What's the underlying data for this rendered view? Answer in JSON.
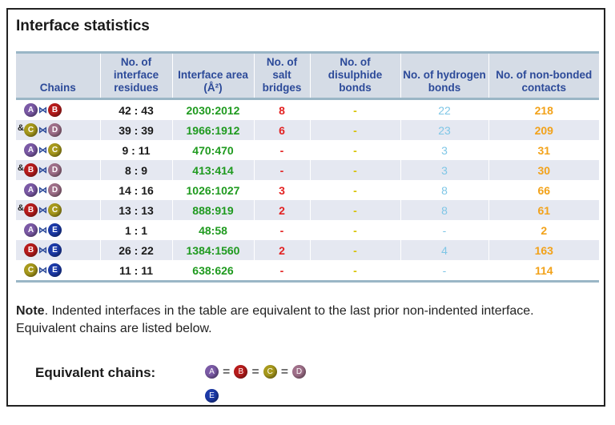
{
  "title": "Interface statistics",
  "colors": {
    "A": "#7b5aa6",
    "B": "#b81c1c",
    "C": "#a89a1c",
    "D": "#a0708a",
    "E": "#1c3aa8"
  },
  "headers": {
    "chains": "Chains",
    "residues": "No. of interface residues",
    "area": "Interface area (Å²)",
    "salt": "No. of salt bridges",
    "disulphide": "No. of disulphide bonds",
    "hbonds": "No. of hydrogen bonds",
    "nonbonded": "No. of non-bonded contacts"
  },
  "rows": [
    {
      "indent": "",
      "c1": "A",
      "c2": "B",
      "link": "⋈",
      "residues": "42 : 43",
      "area": "2030:2012",
      "salt": "8",
      "disulphide": "-",
      "hbonds": "22",
      "nonbonded": "218"
    },
    {
      "indent": "&",
      "c1": "C",
      "c2": "D",
      "link": "⋈",
      "residues": "39 : 39",
      "area": "1966:1912",
      "salt": "6",
      "disulphide": "-",
      "hbonds": "23",
      "nonbonded": "209"
    },
    {
      "indent": "",
      "c1": "A",
      "c2": "C",
      "link": "⋈",
      "residues": "9 : 11",
      "area": "470:470",
      "salt": "-",
      "disulphide": "-",
      "hbonds": "3",
      "nonbonded": "31"
    },
    {
      "indent": "&",
      "c1": "B",
      "c2": "D",
      "link": "⋈",
      "residues": "8 : 9",
      "area": "413:414",
      "salt": "-",
      "disulphide": "-",
      "hbonds": "3",
      "nonbonded": "30"
    },
    {
      "indent": "",
      "c1": "A",
      "c2": "D",
      "link": "⋈",
      "residues": "14 : 16",
      "area": "1026:1027",
      "salt": "3",
      "disulphide": "-",
      "hbonds": "8",
      "nonbonded": "66"
    },
    {
      "indent": "&",
      "c1": "B",
      "c2": "C",
      "link": "⋈",
      "residues": "13 : 13",
      "area": "888:919",
      "salt": "2",
      "disulphide": "-",
      "hbonds": "8",
      "nonbonded": "61"
    },
    {
      "indent": "",
      "c1": "A",
      "c2": "E",
      "link": "⋈",
      "residues": "1 : 1",
      "area": "48:58",
      "salt": "-",
      "disulphide": "-",
      "hbonds": "-",
      "nonbonded": "2"
    },
    {
      "indent": "",
      "c1": "B",
      "c2": "E",
      "link": "⋈",
      "residues": "26 : 22",
      "area": "1384:1560",
      "salt": "2",
      "disulphide": "-",
      "hbonds": "4",
      "nonbonded": "163"
    },
    {
      "indent": "",
      "c1": "C",
      "c2": "E",
      "link": "⋈",
      "residues": "11 : 11",
      "area": "638:626",
      "salt": "-",
      "disulphide": "-",
      "hbonds": "-",
      "nonbonded": "114"
    }
  ],
  "note": {
    "bold": "Note",
    "text": ". Indented interfaces in the table are equivalent to the last prior non-indented interface. Equivalent chains are listed below."
  },
  "equivalent": {
    "label": "Equivalent chains:",
    "eq_sign": "=",
    "chains": [
      "A",
      "B",
      "C",
      "D"
    ],
    "extra_chain": "E"
  }
}
